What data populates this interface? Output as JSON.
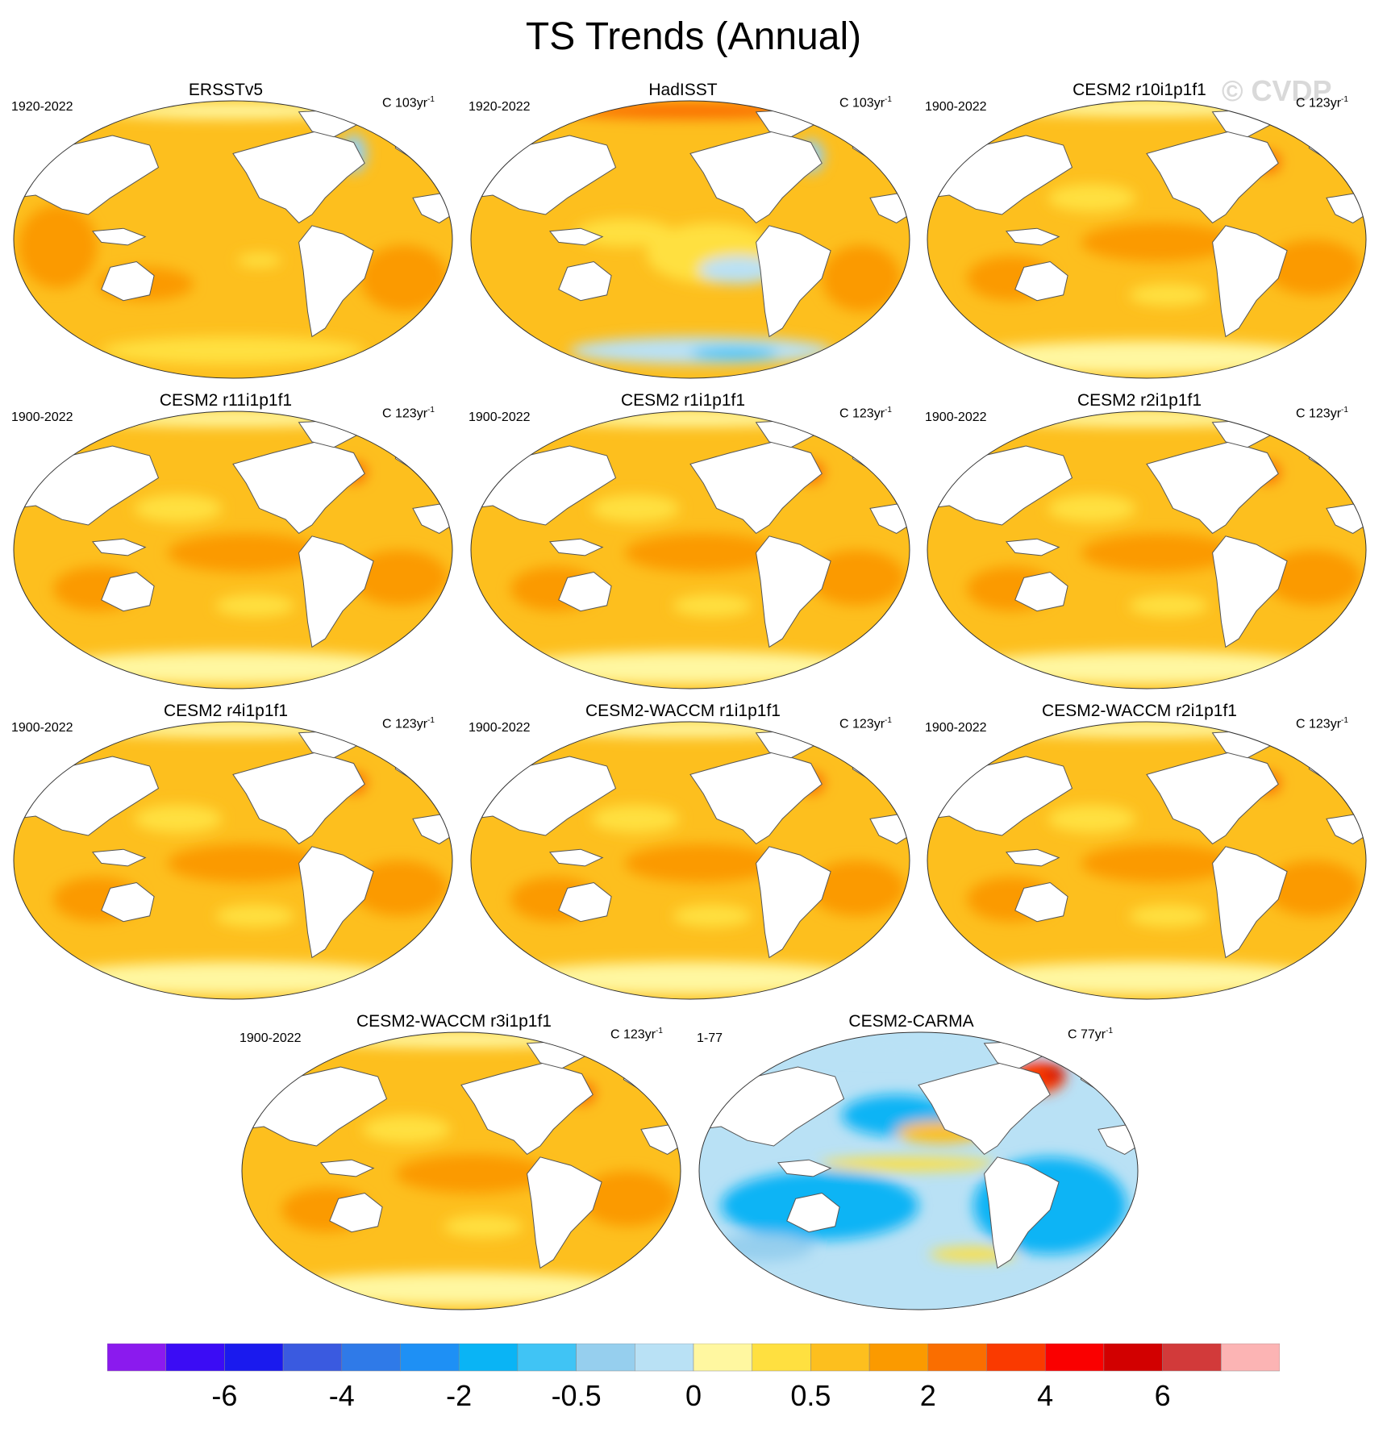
{
  "title": "TS Trends (Annual)",
  "watermark": "© CVDP",
  "panels": [
    {
      "name": "ERSSTv5",
      "period": "1920-2022",
      "units": "C 103yr",
      "units_exp": "-1",
      "pattern": "obs1"
    },
    {
      "name": "HadISST",
      "period": "1920-2022",
      "units": "C 103yr",
      "units_exp": "-1",
      "pattern": "obs2"
    },
    {
      "name": "CESM2 r10i1p1f1",
      "period": "1900-2022",
      "units": "C 123yr",
      "units_exp": "-1",
      "pattern": "model"
    },
    {
      "name": "CESM2 r11i1p1f1",
      "period": "1900-2022",
      "units": "C 123yr",
      "units_exp": "-1",
      "pattern": "model"
    },
    {
      "name": "CESM2 r1i1p1f1",
      "period": "1900-2022",
      "units": "C 123yr",
      "units_exp": "-1",
      "pattern": "model"
    },
    {
      "name": "CESM2 r2i1p1f1",
      "period": "1900-2022",
      "units": "C 123yr",
      "units_exp": "-1",
      "pattern": "model"
    },
    {
      "name": "CESM2 r4i1p1f1",
      "period": "1900-2022",
      "units": "C 123yr",
      "units_exp": "-1",
      "pattern": "model"
    },
    {
      "name": "CESM2-WACCM r1i1p1f1",
      "period": "1900-2022",
      "units": "C 123yr",
      "units_exp": "-1",
      "pattern": "model"
    },
    {
      "name": "CESM2-WACCM r2i1p1f1",
      "period": "1900-2022",
      "units": "C 123yr",
      "units_exp": "-1",
      "pattern": "model"
    },
    {
      "name": "CESM2-WACCM r3i1p1f1",
      "period": "1900-2022",
      "units": "C 123yr",
      "units_exp": "-1",
      "pattern": "model"
    },
    {
      "name": "CESM2-CARMA",
      "period": "1-77",
      "units": "C 77yr",
      "units_exp": "-1",
      "pattern": "cool"
    }
  ],
  "colorbar": {
    "colors": [
      "#8b1aee",
      "#3b0cf5",
      "#1a1aee",
      "#3a5ae0",
      "#2f7ae8",
      "#1e90f5",
      "#0ab4f5",
      "#40c4f5",
      "#96cfee",
      "#b9e1f5",
      "#fff7a0",
      "#ffe040",
      "#fdbf1e",
      "#fb9a00",
      "#fa6e00",
      "#fa3a00",
      "#fa0000",
      "#d20000",
      "#d23a3a",
      "#fcb4b4"
    ],
    "tick_labels": [
      "-6",
      "-4",
      "-2",
      "-0.5",
      "0",
      "0.5",
      "2",
      "4",
      "6"
    ],
    "tick_boundaries": [
      2,
      4,
      6,
      8,
      10,
      12,
      14,
      16,
      18
    ]
  }
}
